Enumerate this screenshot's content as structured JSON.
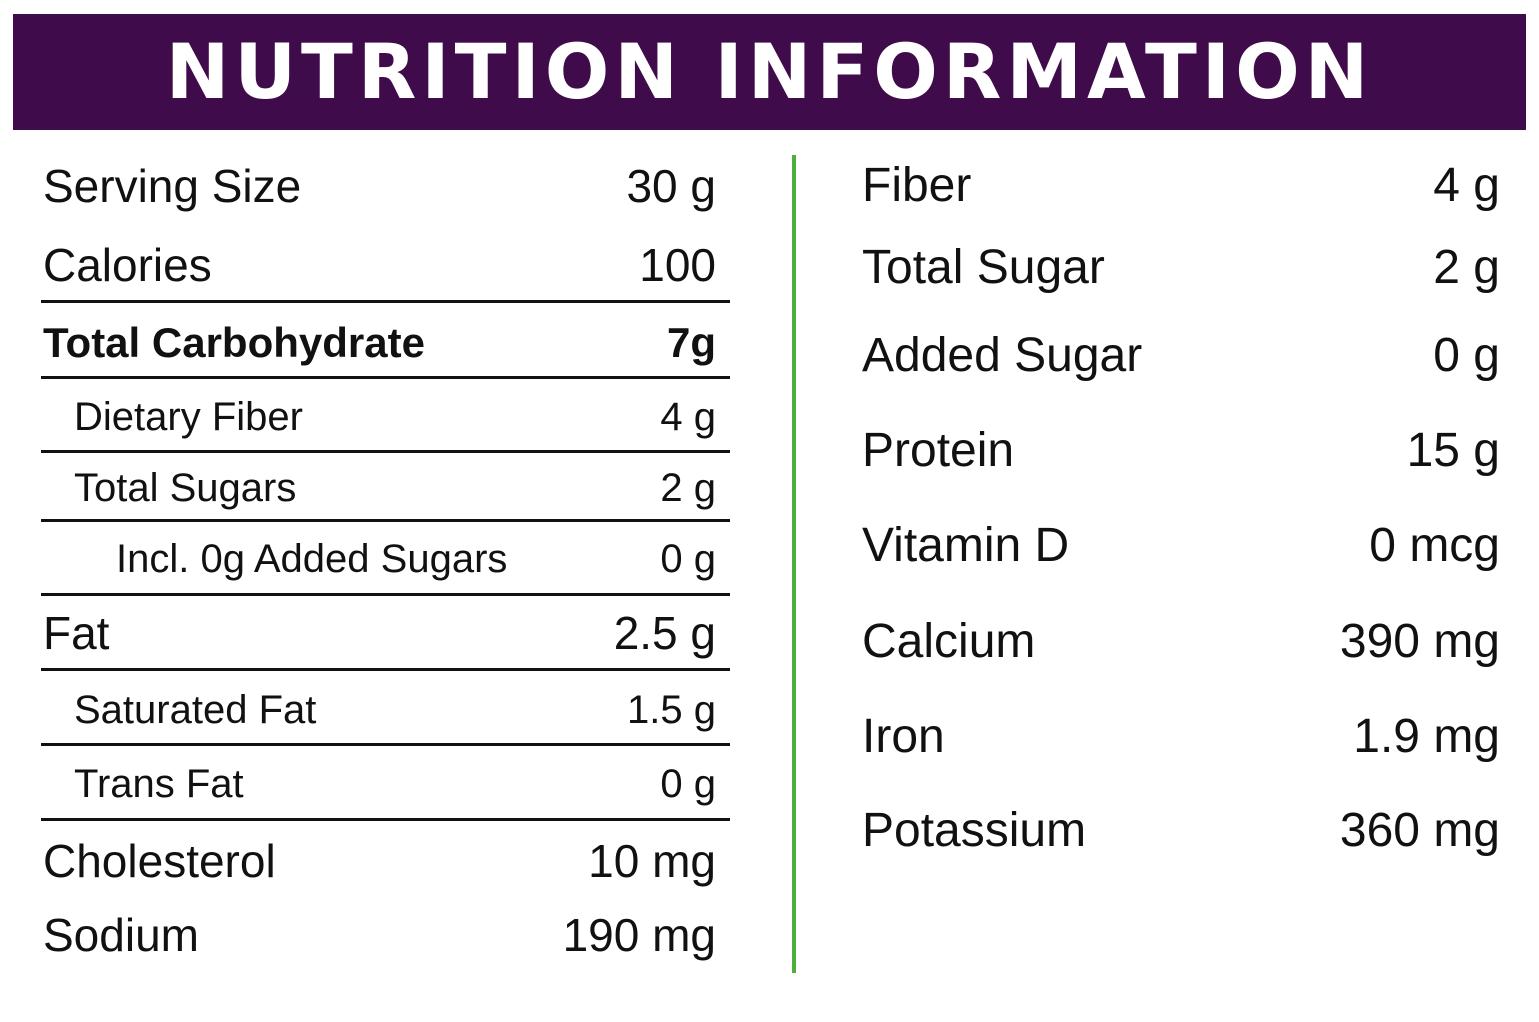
{
  "header": {
    "title": "NUTRITION INFORMATION",
    "background_color": "#3f0b4a",
    "text_color": "#ffffff"
  },
  "divider_color": "#4caf3a",
  "left_column": [
    {
      "label": "Serving Size",
      "value": "30 g"
    },
    {
      "label": "Calories",
      "value": "100"
    },
    {
      "label": "Total Carbohydrate",
      "value": "7g",
      "bold": true
    },
    {
      "label": "Dietary Fiber",
      "value": "4 g",
      "indent": 1
    },
    {
      "label": "Total Sugars",
      "value": "2 g",
      "indent": 1
    },
    {
      "label": "Incl. 0g Added Sugars",
      "value": "0 g",
      "indent": 2
    },
    {
      "label": "Fat",
      "value": "2.5 g"
    },
    {
      "label": "Saturated Fat",
      "value": "1.5 g",
      "indent": 1
    },
    {
      "label": "Trans Fat",
      "value": "0 g",
      "indent": 1
    },
    {
      "label": "Cholesterol",
      "value": "10 mg"
    },
    {
      "label": "Sodium",
      "value": "190 mg"
    }
  ],
  "right_column": [
    {
      "label": "Fiber",
      "value": "4 g"
    },
    {
      "label": "Total Sugar",
      "value": "2 g"
    },
    {
      "label": "Added Sugar",
      "value": "0 g"
    },
    {
      "label": "Protein",
      "value": "15 g"
    },
    {
      "label": "Vitamin D",
      "value": "0 mcg"
    },
    {
      "label": "Calcium",
      "value": "390 mg"
    },
    {
      "label": "Iron",
      "value": "1.9 mg"
    },
    {
      "label": "Potassium",
      "value": "360 mg"
    }
  ]
}
